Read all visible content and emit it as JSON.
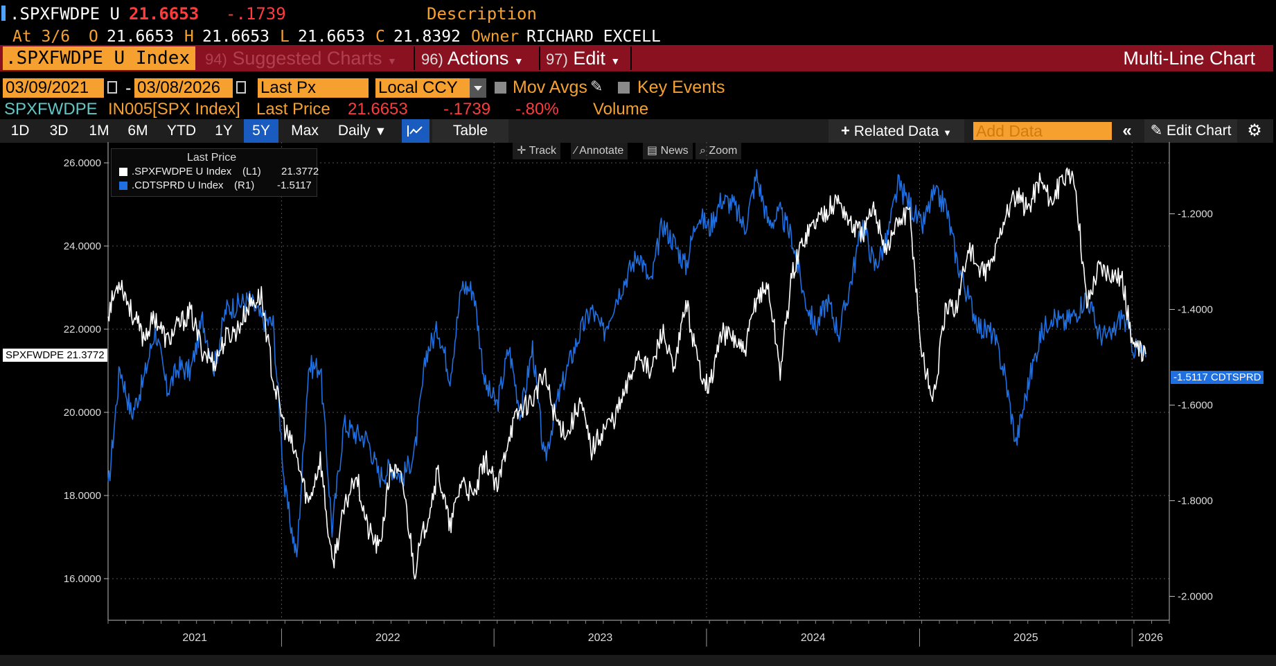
{
  "header": {
    "ticker": ".SPXFWDPE U",
    "price": "21.6653",
    "change": "-.1739",
    "description_label": "Description",
    "at_label": "At 3/6",
    "open_label": "O",
    "open": "21.6653",
    "high_label": "H",
    "high": "21.6653",
    "low_label": "L",
    "low": "21.6653",
    "close_label": "C",
    "close": "21.8392",
    "owner_label": "Owner",
    "owner": "RICHARD EXCELL"
  },
  "toolbar": {
    "security": ".SPXFWDPE U Index",
    "suggested_num": "94)",
    "suggested_label": "Suggested Charts",
    "actions_num": "96)",
    "actions_label": "Actions",
    "edit_num": "97)",
    "edit_label": "Edit",
    "chart_type_title": "Multi-Line Chart"
  },
  "params": {
    "start_date": "03/09/2021",
    "end_date": "03/08/2026",
    "dash": "-",
    "field": "Last Px",
    "currency": "Local CCY",
    "mov_avgs": "Mov Avgs",
    "key_events": "Key Events"
  },
  "info_row": {
    "ticker": "SPXFWDPE",
    "index_ref": "IN005[SPX Index]",
    "metric": "Last Price",
    "value": "21.6653",
    "change": "-.1739",
    "pct": "-.80%",
    "volume": "Volume"
  },
  "tabs": [
    "1D",
    "3D",
    "1M",
    "6M",
    "YTD",
    "1Y",
    "5Y",
    "Max"
  ],
  "active_tab": "5Y",
  "tab_extra": {
    "daily": "Daily",
    "table": "Table",
    "related": "Related Data",
    "add_data_placeholder": "Add Data",
    "edit_chart": "Edit Chart"
  },
  "tools": {
    "track": "Track",
    "annotate": "Annotate",
    "news": "News",
    "zoom": "Zoom"
  },
  "colors": {
    "series1": "#ffffff",
    "series2": "#1f6fe0",
    "accent": "#f6a030",
    "header_bar": "#8a1220",
    "active_tab": "#1a5bbf"
  },
  "chart_data": {
    "type": "line",
    "legend_title": "Last Price",
    "legend_placement": "top-left",
    "grid": true,
    "x_labels": [
      "2021",
      "2022",
      "2023",
      "2024",
      "2025",
      "2026"
    ],
    "left_axis": {
      "ticks": [
        "26.0000",
        "24.0000",
        "22.0000",
        "20.0000",
        "18.0000",
        "16.0000"
      ],
      "ylim": [
        15.0,
        26.5
      ]
    },
    "right_axis": {
      "ticks": [
        "-1.2000",
        "-1.4000",
        "-1.6000",
        "-1.8000",
        "-2.0000"
      ],
      "ylim": [
        -2.05,
        -1.05
      ]
    },
    "series": [
      {
        "name": ".SPXFWDPE U Index",
        "axis": "L1",
        "last": "21.3772",
        "tag": "SPXFWDPE 21.3772",
        "values": [
          22.4,
          23.2,
          22.4,
          21.8,
          22.3,
          21.7,
          22.1,
          22.4,
          21.5,
          21.2,
          21.8,
          22.0,
          22.6,
          22.8,
          20.8,
          19.6,
          18.9,
          17.8,
          18.9,
          16.3,
          17.6,
          18.6,
          17.2,
          16.7,
          18.7,
          18.3,
          16.2,
          17.4,
          18.6,
          17.2,
          18.4,
          17.9,
          18.9,
          18.1,
          19.5,
          20.1,
          20.3,
          20.9,
          19.8,
          19.5,
          20.3,
          19.1,
          19.6,
          19.9,
          20.6,
          21.5,
          20.9,
          22.0,
          20.9,
          22.7,
          21.2,
          20.6,
          21.9,
          21.8,
          21.4,
          22.8,
          23.0,
          21.0,
          23.3,
          24.2,
          24.6,
          24.9,
          25.1,
          24.5,
          24.3,
          24.9,
          23.9,
          24.6,
          24.8,
          21.4,
          20.3,
          22.4,
          22.6,
          24.0,
          23.3,
          23.6,
          24.7,
          25.2,
          24.9,
          25.6,
          25.1,
          25.6,
          25.6,
          22.6,
          23.5,
          23.4,
          23.2,
          21.5,
          21.4
        ],
        "start_date": "2021-03-09",
        "end_date": "2026-03-06"
      },
      {
        "name": ".CDTSPRD U Index",
        "axis": "R1",
        "last": "-1.5117",
        "tag": "-1.5117 CDTSPRD",
        "values": [
          -1.78,
          -1.52,
          -1.62,
          -1.55,
          -1.44,
          -1.57,
          -1.52,
          -1.53,
          -1.42,
          -1.52,
          -1.4,
          -1.39,
          -1.38,
          -1.42,
          -1.43,
          -1.78,
          -1.92,
          -1.52,
          -1.52,
          -1.86,
          -1.64,
          -1.66,
          -1.67,
          -1.75,
          -1.73,
          -1.75,
          -1.7,
          -1.49,
          -1.44,
          -1.54,
          -1.35,
          -1.36,
          -1.56,
          -1.6,
          -1.48,
          -1.62,
          -1.48,
          -1.72,
          -1.6,
          -1.52,
          -1.45,
          -1.4,
          -1.45,
          -1.38,
          -1.33,
          -1.28,
          -1.35,
          -1.22,
          -1.26,
          -1.31,
          -1.2,
          -1.23,
          -1.17,
          -1.18,
          -1.23,
          -1.12,
          -1.22,
          -1.2,
          -1.25,
          -1.37,
          -1.44,
          -1.38,
          -1.45,
          -1.34,
          -1.22,
          -1.31,
          -1.26,
          -1.14,
          -1.18,
          -1.23,
          -1.16,
          -1.18,
          -1.3,
          -1.38,
          -1.44,
          -1.45,
          -1.53,
          -1.68,
          -1.56,
          -1.46,
          -1.41,
          -1.43,
          -1.41,
          -1.37,
          -1.45,
          -1.46,
          -1.41,
          -1.48,
          -1.5
        ],
        "start_date": "2021-03-09",
        "end_date": "2026-03-06"
      }
    ]
  }
}
